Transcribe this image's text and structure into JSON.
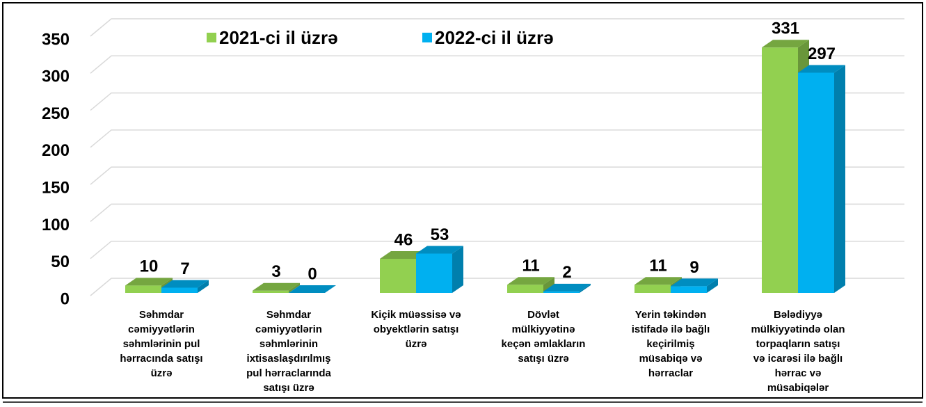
{
  "chart_data": {
    "type": "bar3d",
    "categories": [
      "Səhmdar\ncəmiyyətlərin\nsəhmlərinin pul\nhərracında satışı\nüzrə",
      "Səhmdar\ncəmiyyətlərin\nsəhmlərinin\nixtisaslaşdırılmış\npul hərraclarında\nsatışı üzrə",
      "Kiçik müəssisə və\nobyektlərin satışı\nüzrə",
      "Dövlət\nmülkiyyətinə\nkeçən əmlakların\nsatışı üzrə",
      "Yerin təkindən\nistifadə ilə bağlı\nkeçirilmiş\nmüsabiqə və\nhərraclar",
      "Bələdiyyə\nmülkiyyətində olan\ntorpaqların satışı\nvə icarəsi ilə bağlı\nhərrac və\nmüsabiqələr"
    ],
    "series": [
      {
        "name": "2021-ci il üzrə",
        "color": "#92d050",
        "values": [
          10,
          3,
          46,
          11,
          11,
          331
        ]
      },
      {
        "name": "2022-ci il üzrə",
        "color": "#00b0f0",
        "values": [
          7,
          0,
          53,
          2,
          9,
          297
        ]
      }
    ],
    "ylim": [
      0,
      350
    ],
    "yticks": [
      0,
      50,
      100,
      150,
      200,
      250,
      300,
      350
    ],
    "grid": true
  }
}
